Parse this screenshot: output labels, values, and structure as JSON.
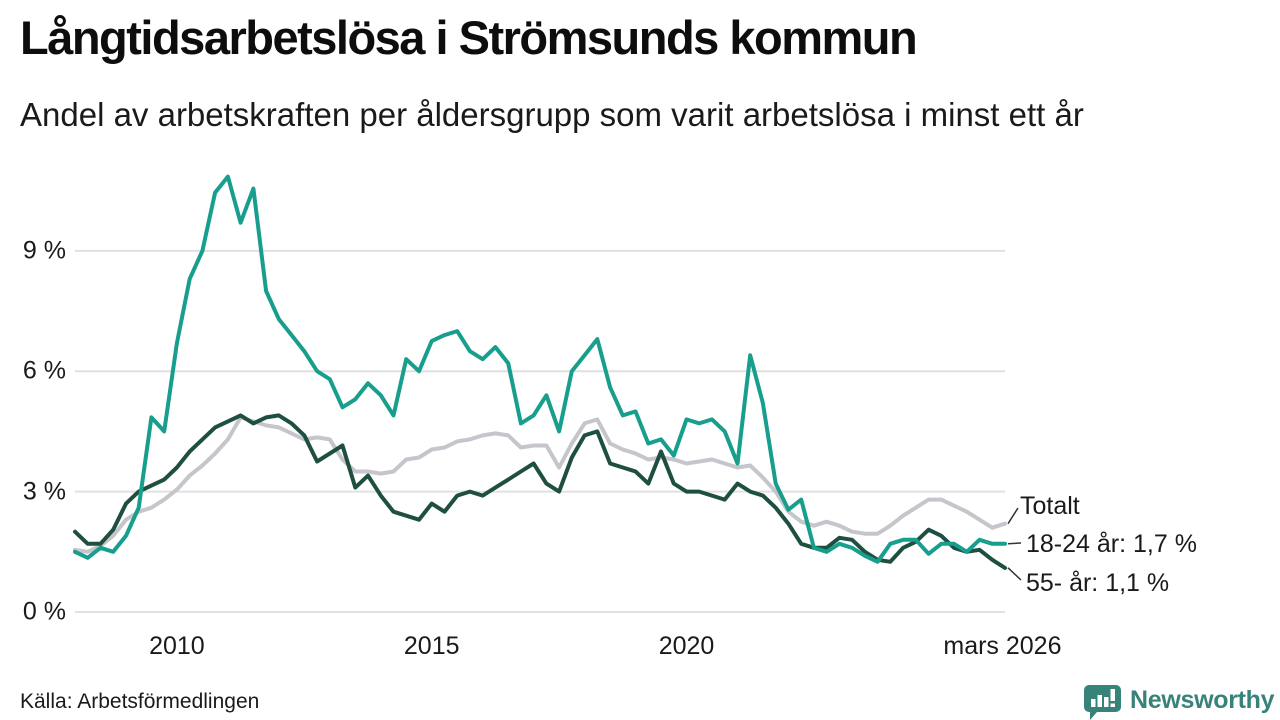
{
  "header": {
    "title": "Långtidsarbetslösa i Strömsunds kommun",
    "subtitle": "Andel av arbetskraften per åldersgrupp som varit arbetslösa i minst ett år"
  },
  "footer": {
    "source": "Källa: Arbetsförmedlingen",
    "logo_text": "Newsworthy"
  },
  "colors": {
    "teal": "#179e8d",
    "gray": "#c6c5cb",
    "dark_green": "#1e4f41",
    "grid": "#e0e0e0",
    "text": "#1a1a1a",
    "logo": "#388379",
    "connector": "#333333"
  },
  "chart_data": {
    "type": "line",
    "title": "Långtidsarbetslösa i Strömsunds kommun",
    "subtitle": "Andel av arbetskraften per åldersgrupp som varit arbetslösa i minst ett år",
    "grid": "horizontal only",
    "legend_position": "end-of-line labels at right",
    "x_unit": "year (quarterly estimates)",
    "x_start": 2008.0,
    "x_step": 0.25,
    "x_range": [
      2008.0,
      2026.25
    ],
    "ylim": [
      0,
      11
    ],
    "y_ticks": [
      {
        "value": 0,
        "label": "0 %"
      },
      {
        "value": 3,
        "label": "3 %"
      },
      {
        "value": 6,
        "label": "6 %"
      },
      {
        "value": 9,
        "label": "9 %"
      }
    ],
    "x_ticks": [
      {
        "value": 2010,
        "label": "2010"
      },
      {
        "value": 2015,
        "label": "2015"
      },
      {
        "value": 2020,
        "label": "2020"
      },
      {
        "value": 2026.2,
        "label": "mars 2026"
      }
    ],
    "series": [
      {
        "name": "Totalt",
        "color": "#c6c5cb",
        "end_label": "Totalt",
        "values": [
          1.55,
          1.5,
          1.65,
          1.9,
          2.3,
          2.5,
          2.6,
          2.8,
          3.05,
          3.4,
          3.65,
          3.95,
          4.3,
          4.85,
          4.75,
          4.65,
          4.6,
          4.45,
          4.3,
          4.35,
          4.3,
          3.8,
          3.5,
          3.5,
          3.45,
          3.5,
          3.8,
          3.85,
          4.05,
          4.1,
          4.25,
          4.3,
          4.4,
          4.45,
          4.4,
          4.1,
          4.15,
          4.15,
          3.6,
          4.2,
          4.7,
          4.8,
          4.2,
          4.05,
          3.95,
          3.8,
          3.85,
          3.8,
          3.7,
          3.75,
          3.8,
          3.7,
          3.6,
          3.65,
          3.35,
          3.0,
          2.5,
          2.25,
          2.15,
          2.25,
          2.15,
          2.0,
          1.95,
          1.95,
          2.15,
          2.4,
          2.6,
          2.8,
          2.8,
          2.65,
          2.5,
          2.3,
          2.1,
          2.2
        ]
      },
      {
        "name": "55- år",
        "color": "#1e4f41",
        "end_label": "55- år: 1,1 %",
        "end_value_pct": 1.1,
        "values": [
          2.0,
          1.7,
          1.7,
          2.05,
          2.7,
          3.0,
          3.15,
          3.3,
          3.6,
          4.0,
          4.3,
          4.6,
          4.75,
          4.9,
          4.7,
          4.85,
          4.9,
          4.7,
          4.4,
          3.75,
          3.95,
          4.15,
          3.1,
          3.4,
          2.9,
          2.5,
          2.4,
          2.3,
          2.7,
          2.5,
          2.9,
          3.0,
          2.9,
          3.1,
          3.3,
          3.5,
          3.7,
          3.2,
          3.0,
          3.85,
          4.4,
          4.5,
          3.7,
          3.6,
          3.5,
          3.2,
          4.0,
          3.2,
          3.0,
          3.0,
          2.9,
          2.8,
          3.2,
          3.0,
          2.9,
          2.6,
          2.2,
          1.7,
          1.6,
          1.6,
          1.85,
          1.8,
          1.5,
          1.3,
          1.25,
          1.6,
          1.75,
          2.05,
          1.9,
          1.6,
          1.5,
          1.55,
          1.3,
          1.1
        ]
      },
      {
        "name": "18-24 år",
        "color": "#179e8d",
        "end_label": "18-24 år: 1,7 %",
        "end_value_pct": 1.7,
        "values": [
          1.5,
          1.35,
          1.6,
          1.5,
          1.9,
          2.6,
          4.85,
          4.5,
          6.7,
          8.3,
          9.0,
          10.45,
          10.85,
          9.7,
          10.55,
          8.0,
          7.3,
          6.9,
          6.5,
          6.0,
          5.8,
          5.1,
          5.3,
          5.7,
          5.4,
          4.9,
          6.3,
          6.0,
          6.75,
          6.9,
          7.0,
          6.5,
          6.3,
          6.6,
          6.2,
          4.7,
          4.9,
          5.4,
          4.5,
          6.0,
          6.4,
          6.8,
          5.6,
          4.9,
          5.0,
          4.2,
          4.3,
          3.9,
          4.8,
          4.7,
          4.8,
          4.5,
          3.7,
          6.4,
          5.2,
          3.2,
          2.55,
          2.8,
          1.6,
          1.5,
          1.7,
          1.6,
          1.4,
          1.25,
          1.7,
          1.8,
          1.8,
          1.45,
          1.7,
          1.7,
          1.5,
          1.8,
          1.7,
          1.7
        ]
      }
    ]
  }
}
